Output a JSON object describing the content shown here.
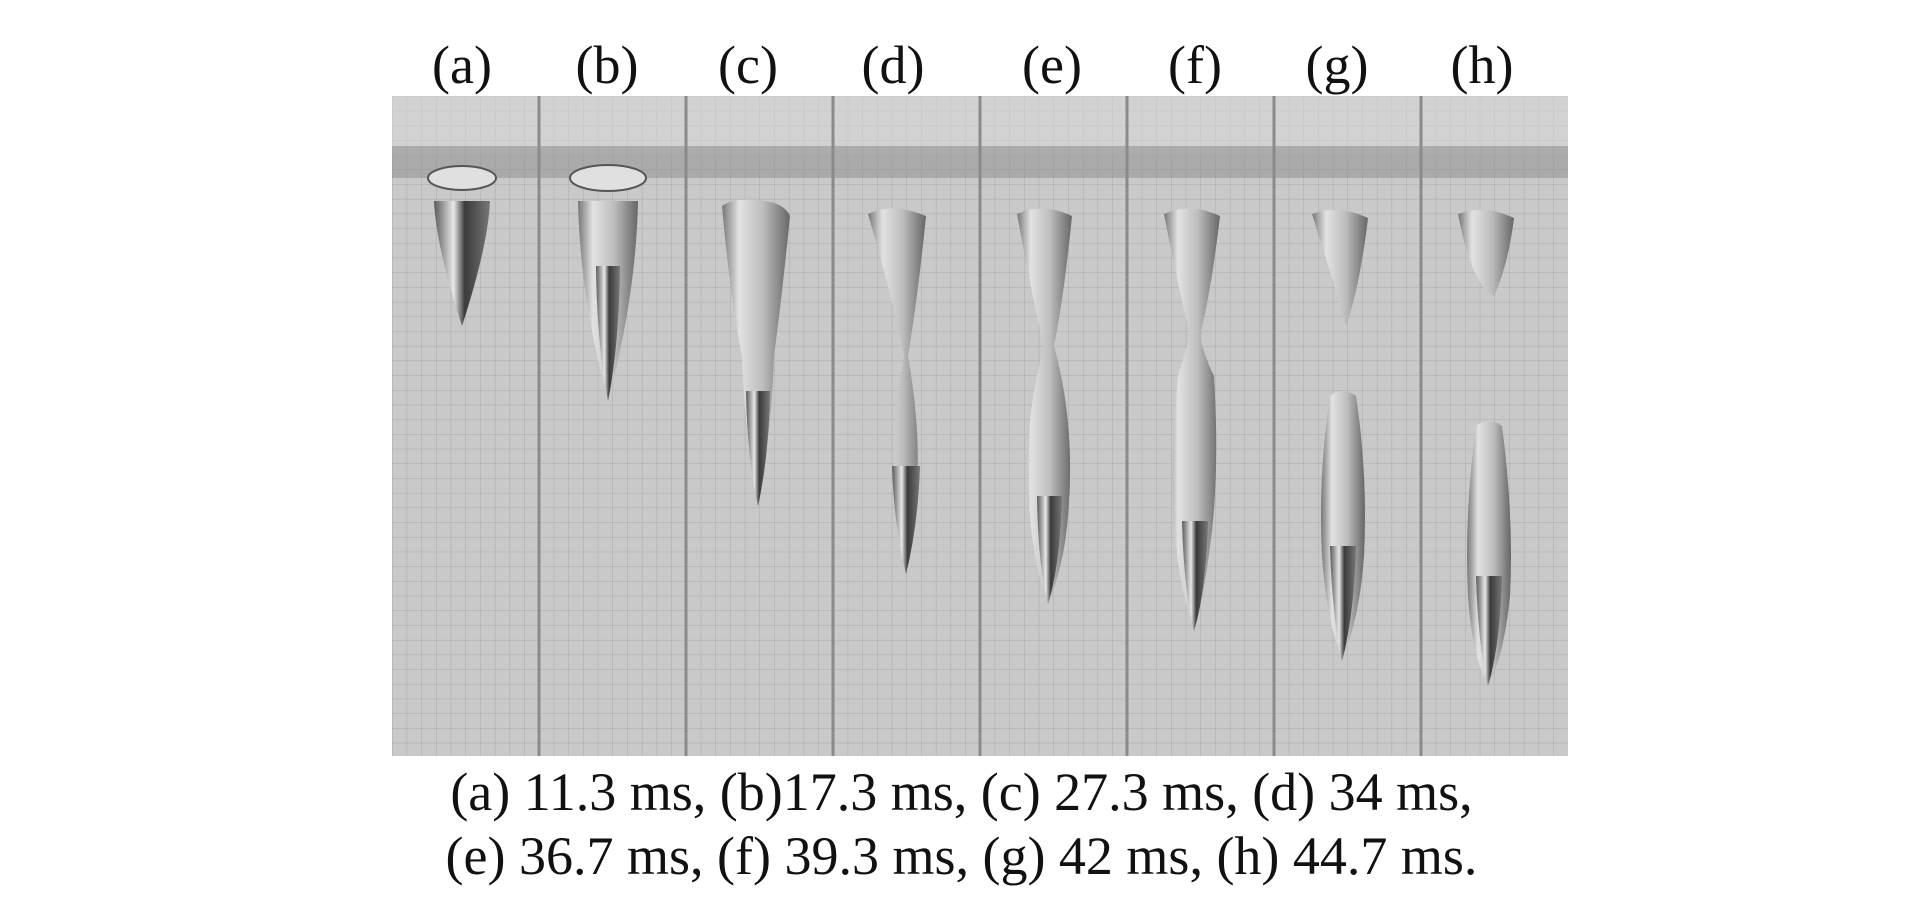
{
  "panels": [
    {
      "label": "(a)",
      "time_ms": 11.3
    },
    {
      "label": "(b)",
      "time_ms": 17.3
    },
    {
      "label": "(c)",
      "time_ms": 27.3
    },
    {
      "label": "(d)",
      "time_ms": 34
    },
    {
      "label": "(e)",
      "time_ms": 36.7
    },
    {
      "label": "(f)",
      "time_ms": 39.3
    },
    {
      "label": "(g)",
      "time_ms": 42
    },
    {
      "label": "(h)",
      "time_ms": 44.7
    }
  ],
  "caption": {
    "line1": "(a) 11.3 ms, (b)17.3 ms, (c) 27.3 ms, (d) 34 ms,",
    "line2": "(e) 36.7 ms, (f) 39.3 ms, (g) 42 ms, (h) 44.7 ms."
  },
  "colors": {
    "background": "#ffffff",
    "photo": "#c9c9c9",
    "grid": "#a9a9a9",
    "body": "#333333"
  }
}
